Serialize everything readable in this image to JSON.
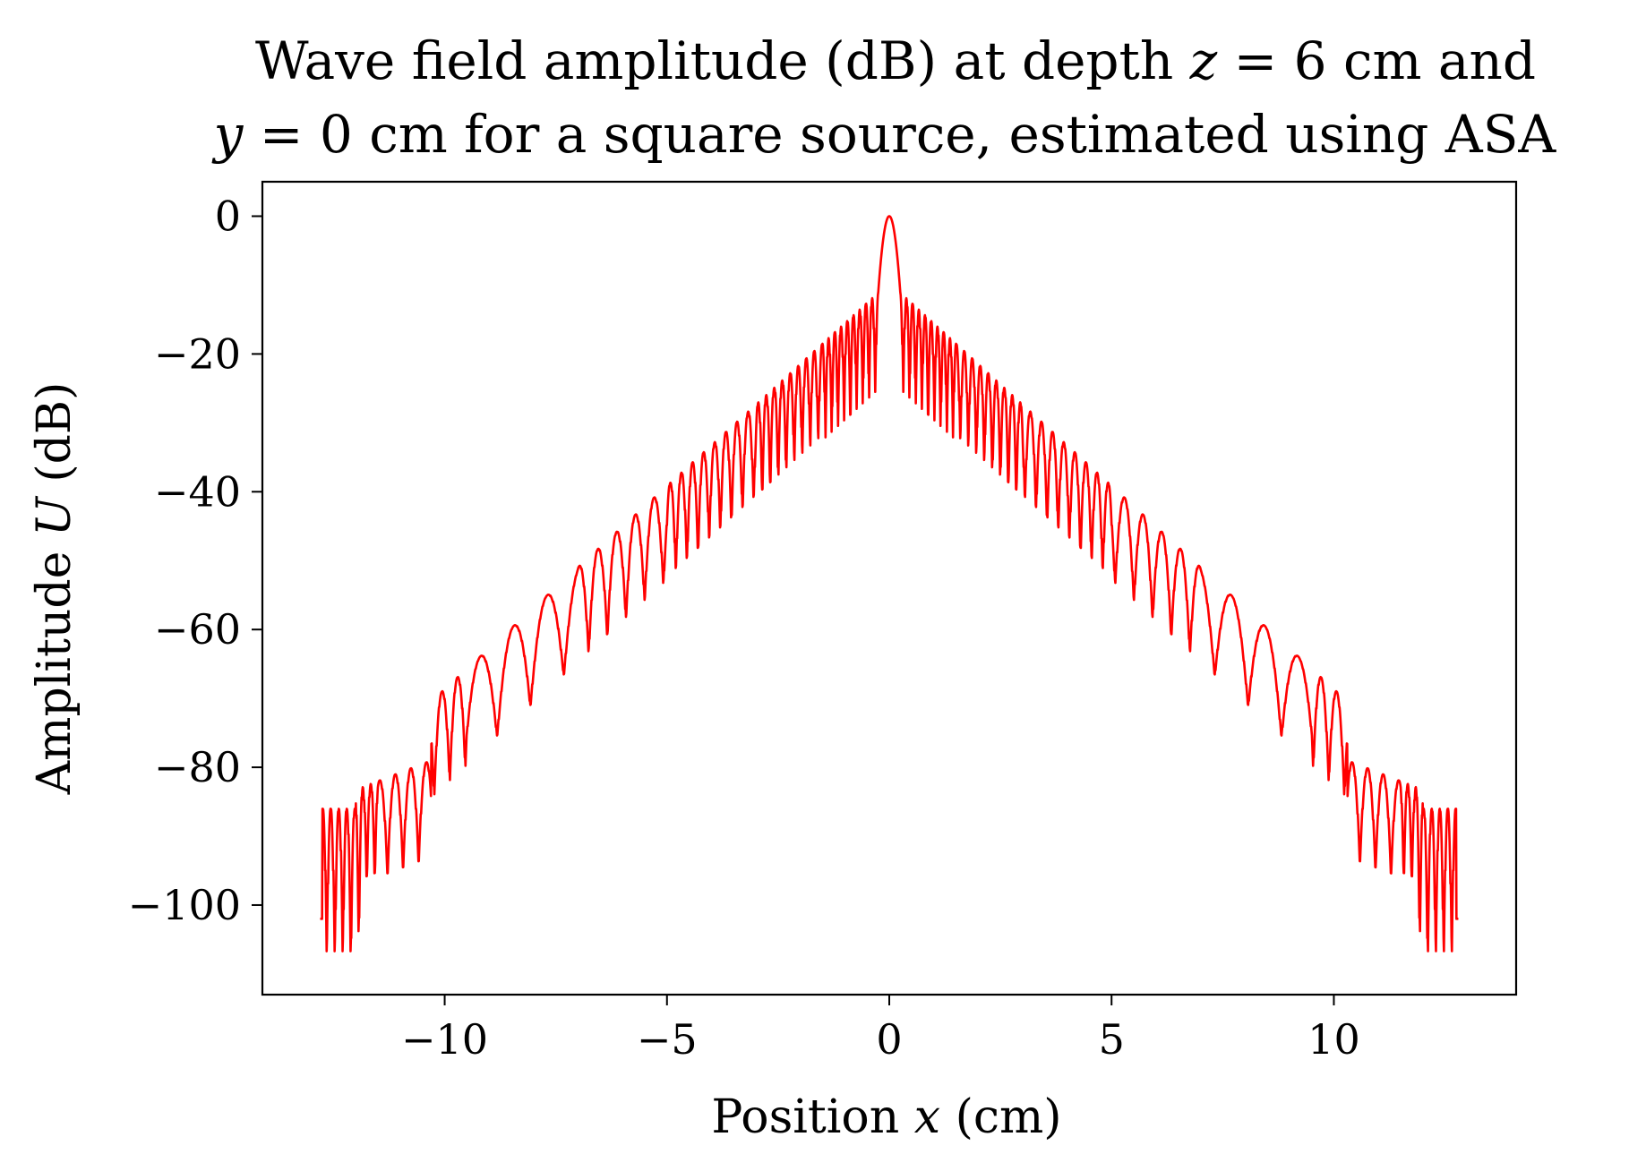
{
  "chart_data": {
    "type": "line",
    "title_line1": "Wave field amplitude (dB) at depth z = 6 cm and",
    "title_line2": "y = 0 cm for a square source, estimated using ASA",
    "title_parts": {
      "line1_a": "Wave field amplitude (dB) at depth ",
      "line1_var": "z",
      "line1_b": " = 6 cm and",
      "line2_var": "y",
      "line2_b": " = 0 cm for a square source, estimated using ASA"
    },
    "xlabel": "Position x (cm)",
    "xlabel_parts": {
      "pre": "Position ",
      "var": "x",
      "post": " (cm)"
    },
    "ylabel": "Amplitude U (dB)",
    "ylabel_parts": {
      "pre": "Amplitude ",
      "var": "U",
      "post": " (dB)"
    },
    "xlim": [
      -14.1,
      14.1
    ],
    "ylim": [
      -113,
      5
    ],
    "x_ticks": [
      -10,
      -5,
      0,
      5,
      10
    ],
    "x_tick_labels": [
      "−10",
      "−5",
      "0",
      "5",
      "10"
    ],
    "y_ticks": [
      0,
      -20,
      -40,
      -60,
      -80,
      -100
    ],
    "y_tick_labels": [
      "0",
      "−20",
      "−40",
      "−60",
      "−80",
      "−100"
    ],
    "grid": false,
    "series": [
      {
        "color": "#ff0000",
        "x_range": [
          -12.8,
          12.8
        ],
        "symmetric": true,
        "description_points": [
          {
            "x": 0.0,
            "y": 0
          },
          {
            "x": -0.3,
            "y": -27
          },
          {
            "x": -0.4,
            "y": -15
          },
          {
            "x": -1.0,
            "y": -25
          },
          {
            "x": -2.0,
            "y": -32
          },
          {
            "x": -3.0,
            "y": -38
          },
          {
            "x": -4.0,
            "y": -42
          },
          {
            "x": -5.0,
            "y": -46
          },
          {
            "x": -6.0,
            "y": -52
          },
          {
            "x": -7.0,
            "y": -58
          },
          {
            "x": -7.7,
            "y": -63
          },
          {
            "x": -8.6,
            "y": -68
          },
          {
            "x": -9.6,
            "y": -73
          },
          {
            "x": -10.5,
            "y": -87
          },
          {
            "x": -11.2,
            "y": -79
          },
          {
            "x": -12.1,
            "y": -107
          },
          {
            "x": -12.5,
            "y": -87
          },
          {
            "x": -12.8,
            "y": -102
          }
        ]
      }
    ]
  }
}
